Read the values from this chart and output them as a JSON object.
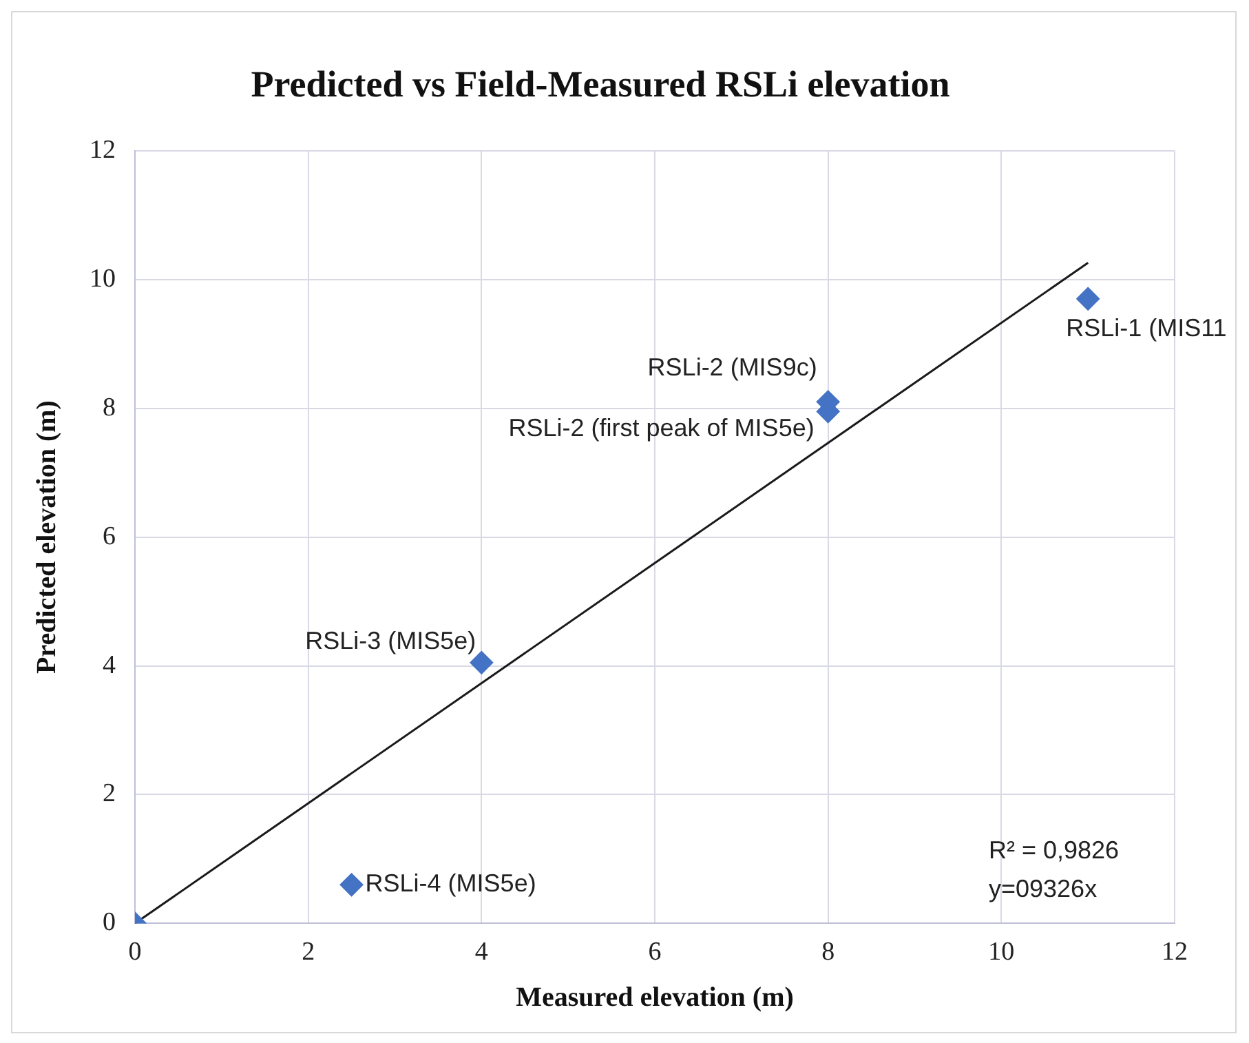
{
  "chart_data": {
    "type": "scatter",
    "title": "Predicted vs Field-Measured RSLi elevation",
    "xlabel": "Measured elevation (m)",
    "ylabel": "Predicted elevation (m)",
    "series": [
      {
        "type": "scatter",
        "color": "#4472c4",
        "marker": "diamond",
        "x": [
          0,
          2.5,
          4,
          8,
          8,
          11
        ],
        "values": [
          0,
          0.6,
          4.05,
          7.95,
          8.1,
          9.7
        ]
      },
      {
        "type": "line",
        "color": "#1a1a1a",
        "marker": "none",
        "line_style": "solid",
        "x": [
          0,
          11
        ],
        "values": [
          0,
          10.26
        ]
      }
    ],
    "xlim": [
      0,
      12
    ],
    "xticks": [
      0,
      2,
      4,
      6,
      8,
      10,
      12
    ],
    "ylim": [
      0,
      12
    ],
    "yticks": [
      0,
      2,
      4,
      6,
      8,
      10,
      12
    ],
    "grid": true,
    "legend": false,
    "annotations": [
      {
        "text": "RSLi-1 (MIS11",
        "x": 11,
        "y": 9.7
      },
      {
        "text": "RSLi-2 (MIS9c)",
        "x": 8,
        "y": 8.1
      },
      {
        "text": "RSLi-2 (first peak of MIS5e)",
        "x": 8,
        "y": 7.95
      },
      {
        "text": "RSLi-3 (MIS5e)",
        "x": 4,
        "y": 4.05
      },
      {
        "text": "RSLi-4 (MIS5e)",
        "x": 2.5,
        "y": 0.6
      },
      "R² = 0,9826",
      "y=09326x"
    ]
  }
}
